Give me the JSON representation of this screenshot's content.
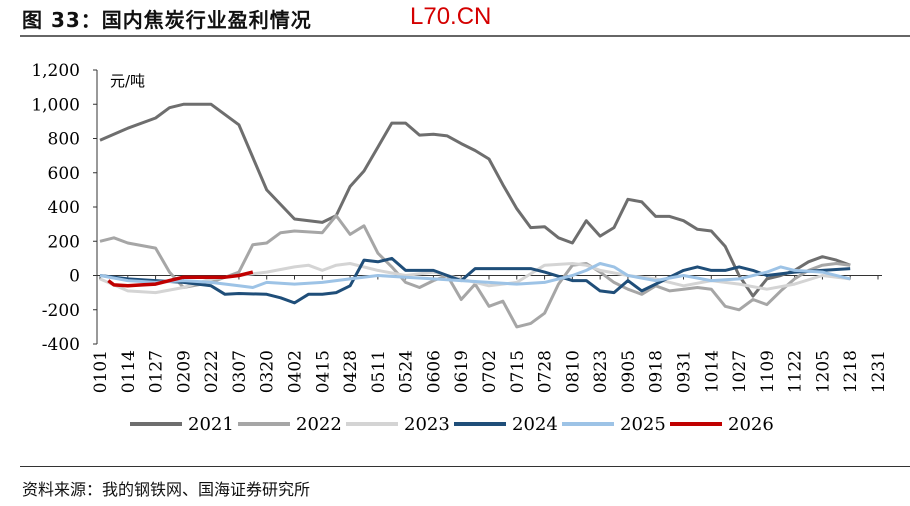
{
  "title": "图 33：国内焦炭行业盈利情况",
  "watermark": "L70.CN",
  "source": "资料来源：我的钢铁网、国海证券研究所",
  "chart_data": {
    "type": "line",
    "ylabel": "元/吨",
    "ylim": [
      -400,
      1200
    ],
    "yticks": [
      -400,
      -200,
      0,
      200,
      400,
      600,
      800,
      1000,
      1200
    ],
    "ytick_labels": [
      "-400",
      "-200",
      "0",
      "200",
      "400",
      "600",
      "800",
      "1000",
      "1,200"
    ],
    "ytick_labels_display": [
      "-400",
      "-200",
      "0",
      "200",
      "400",
      "600",
      "800",
      "1,000",
      "1,200"
    ],
    "categories": [
      "0101",
      "0114",
      "0127",
      "0209",
      "0222",
      "0307",
      "0320",
      "0402",
      "0415",
      "0428",
      "0511",
      "0524",
      "0606",
      "0619",
      "0702",
      "0715",
      "0728",
      "0810",
      "0823",
      "0905",
      "0918",
      "0931",
      "1014",
      "1027",
      "1109",
      "1122",
      "1205",
      "1218",
      "1231"
    ],
    "legend_position": "bottom",
    "series": [
      {
        "name": "2021",
        "color": "#6e6e6e",
        "x": [
          0,
          1,
          2,
          2.5,
          3,
          4,
          5,
          6,
          7,
          8,
          8.5,
          9,
          9.5,
          10,
          10.5,
          11,
          11.5,
          12,
          12.5,
          13,
          13.5,
          14,
          14.5,
          15,
          15.5,
          16,
          16.5,
          17,
          17.5,
          18,
          18.5,
          19,
          19.5,
          20,
          20.5,
          21,
          21.5,
          22,
          22.5,
          23,
          23.5,
          24,
          24.5,
          25,
          25.5,
          26,
          26.5,
          27
        ],
        "y": [
          790,
          860,
          920,
          980,
          1000,
          1000,
          880,
          500,
          330,
          310,
          350,
          520,
          610,
          750,
          890,
          890,
          820,
          825,
          815,
          770,
          730,
          680,
          530,
          390,
          280,
          285,
          220,
          190,
          320,
          230,
          280,
          445,
          430,
          345,
          345,
          320,
          270,
          260,
          170,
          0,
          -120,
          -20,
          0,
          30,
          80,
          110,
          90,
          60
        ]
      },
      {
        "name": "2022",
        "color": "#a6a6a6",
        "x": [
          0,
          0.5,
          1,
          2,
          2.5,
          3,
          4,
          5,
          5.5,
          6,
          6.5,
          7,
          8,
          8.5,
          9,
          9.5,
          10,
          10.5,
          11,
          11.5,
          12,
          12.5,
          13,
          13.5,
          14,
          14.5,
          15,
          15.5,
          16,
          16.5,
          17,
          17.5,
          18,
          18.5,
          19,
          19.5,
          20,
          20.5,
          21,
          21.5,
          22,
          22.5,
          23,
          23.5,
          24,
          24.5,
          25,
          25.5,
          26,
          26.5,
          27
        ],
        "y": [
          200,
          220,
          190,
          160,
          20,
          -70,
          -40,
          20,
          180,
          190,
          250,
          260,
          250,
          350,
          240,
          290,
          130,
          50,
          -40,
          -70,
          -30,
          0,
          -140,
          -50,
          -180,
          -150,
          -300,
          -280,
          -220,
          -50,
          60,
          70,
          20,
          -40,
          -80,
          -110,
          -60,
          -90,
          -80,
          -70,
          -80,
          -180,
          -200,
          -140,
          -170,
          -90,
          -20,
          30,
          60,
          70,
          60
        ]
      },
      {
        "name": "2023",
        "color": "#d4d4d4",
        "x": [
          0,
          1,
          2,
          3,
          4,
          5,
          6,
          7,
          7.5,
          8,
          8.5,
          9,
          10,
          11,
          12,
          13,
          14,
          15,
          16,
          17,
          17.5,
          18,
          19,
          20,
          21,
          22,
          23,
          24,
          25,
          26,
          27
        ],
        "y": [
          -20,
          -90,
          -100,
          -70,
          -20,
          0,
          20,
          50,
          60,
          30,
          60,
          70,
          30,
          0,
          20,
          -20,
          -60,
          -40,
          60,
          70,
          60,
          30,
          0,
          -20,
          -60,
          -30,
          -50,
          -80,
          -50,
          0,
          -20
        ]
      },
      {
        "name": "2024",
        "color": "#1f4e79",
        "x": [
          0,
          1,
          2,
          3,
          4,
          4.5,
          5,
          6,
          6.5,
          7,
          7.5,
          8,
          8.5,
          9,
          9.5,
          10,
          10.5,
          11,
          12,
          13,
          13.5,
          14,
          15,
          15.5,
          16,
          17,
          17.5,
          18,
          18.5,
          19,
          19.5,
          20,
          21,
          21.5,
          22,
          22.5,
          23,
          23.5,
          24,
          25,
          26,
          27
        ],
        "y": [
          0,
          -20,
          -30,
          -40,
          -60,
          -110,
          -105,
          -110,
          -130,
          -160,
          -110,
          -110,
          -100,
          -60,
          90,
          80,
          100,
          30,
          30,
          -30,
          40,
          40,
          40,
          40,
          20,
          -30,
          -30,
          -90,
          -100,
          -30,
          -90,
          -50,
          30,
          50,
          30,
          30,
          50,
          30,
          0,
          20,
          30,
          40
        ]
      },
      {
        "name": "2025",
        "color": "#9dc3e6",
        "x": [
          0,
          1,
          2,
          3,
          4,
          5,
          5.5,
          6,
          7,
          8,
          9,
          10,
          11,
          12,
          13,
          14,
          15,
          16,
          17,
          17.5,
          18,
          18.5,
          19,
          20,
          21,
          22,
          23,
          24,
          24.5,
          25,
          26,
          27
        ],
        "y": [
          0,
          -30,
          -40,
          -30,
          -40,
          -60,
          -70,
          -40,
          -50,
          -40,
          -20,
          0,
          -10,
          -20,
          -30,
          -40,
          -50,
          -40,
          0,
          30,
          70,
          50,
          0,
          -30,
          0,
          -30,
          -20,
          20,
          50,
          30,
          20,
          -20
        ]
      },
      {
        "name": "2026",
        "color": "#c00000",
        "x": [
          0.3,
          0.5,
          1,
          1.5,
          2,
          2.5,
          3,
          3.5,
          4,
          4.5,
          5,
          5.5
        ],
        "y": [
          -30,
          -55,
          -60,
          -55,
          -50,
          -30,
          -10,
          -10,
          -10,
          -10,
          0,
          20
        ]
      }
    ]
  }
}
